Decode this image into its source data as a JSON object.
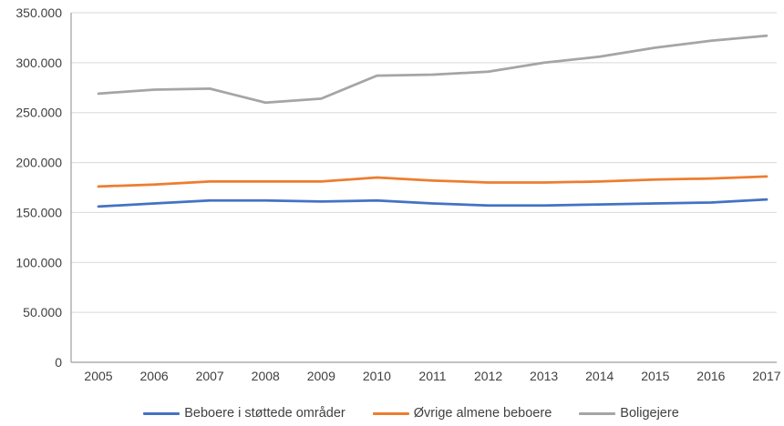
{
  "chart_data": {
    "type": "line",
    "title": "",
    "xlabel": "",
    "ylabel": "",
    "x": [
      2005,
      2006,
      2007,
      2008,
      2009,
      2010,
      2011,
      2012,
      2013,
      2014,
      2015,
      2016,
      2017
    ],
    "series": [
      {
        "name": "Beboere i støttede områder",
        "color": "#4472C4",
        "values": [
          156000,
          159000,
          162000,
          162000,
          161000,
          162000,
          159000,
          157000,
          157000,
          158000,
          159000,
          160000,
          163000
        ]
      },
      {
        "name": "Øvrige almene beboere",
        "color": "#ED7D31",
        "values": [
          176000,
          178000,
          181000,
          181000,
          181000,
          185000,
          182000,
          180000,
          180000,
          181000,
          183000,
          184000,
          186000
        ]
      },
      {
        "name": "Boligejere",
        "color": "#A5A5A5",
        "values": [
          269000,
          273000,
          274000,
          260000,
          264000,
          287000,
          288000,
          291000,
          300000,
          306000,
          315000,
          322000,
          327000
        ]
      }
    ],
    "ylim": [
      0,
      350000
    ],
    "ytick_step": 50000,
    "ytick_labels": [
      "0",
      "50.000",
      "100.000",
      "150.000",
      "200.000",
      "250.000",
      "300.000",
      "350.000"
    ],
    "grid": true,
    "legend_position": "bottom"
  },
  "style": {
    "gridline_color": "#D9D9D9",
    "axis_color": "#9E9E9E",
    "text_color": "#404040",
    "background": "#FFFFFF",
    "line_width": 2.75
  }
}
